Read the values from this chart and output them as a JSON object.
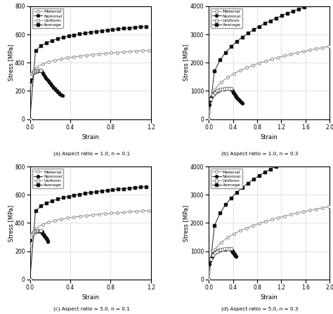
{
  "subplots": [
    {
      "title": "(a) Aspect ratio = 1.0, n = 0.1",
      "ylim": [
        0,
        800
      ],
      "xlim": [
        0,
        1.2
      ],
      "yticks": [
        0,
        200,
        400,
        600,
        800
      ],
      "xticks": [
        0,
        0.4,
        0.8,
        1.2
      ],
      "ylabel": "Stress [MPa]",
      "xlabel": "Strain",
      "n": 0.1,
      "K": 480,
      "aspect": 1.0,
      "nom_end_eps": 0.32,
      "nom_n_markers": 50,
      "avg_end": 1.15,
      "avg_n_pts": 22,
      "avg_scale": 1.35,
      "mat_end": 1.18,
      "mat_n_markers": 20
    },
    {
      "title": "(b) Aspect ratio = 1.0, n = 0.3",
      "ylim": [
        0,
        4000
      ],
      "xlim": [
        0,
        2.0
      ],
      "yticks": [
        0,
        1000,
        2000,
        3000,
        4000
      ],
      "xticks": [
        0,
        0.4,
        0.8,
        1.2,
        1.6,
        2.0
      ],
      "ylabel": "Stress [MPa]",
      "xlabel": "Strain",
      "n": 0.3,
      "K": 2100,
      "aspect": 1.0,
      "nom_end_eps": 0.55,
      "nom_n_markers": 50,
      "avg_end": 1.95,
      "avg_n_pts": 22,
      "avg_scale": 1.65,
      "mat_end": 1.98,
      "mat_n_markers": 20
    },
    {
      "title": "(c) Aspect ratio = 5.0, n = 0.1",
      "ylim": [
        0,
        800
      ],
      "xlim": [
        0,
        1.2
      ],
      "yticks": [
        0,
        200,
        400,
        600,
        800
      ],
      "xticks": [
        0,
        0.4,
        0.8,
        1.2
      ],
      "ylabel": "Stress [MPa]",
      "xlabel": "Strain",
      "n": 0.1,
      "K": 480,
      "aspect": 5.0,
      "nom_end_eps": 0.18,
      "nom_n_markers": 35,
      "avg_end": 1.15,
      "avg_n_pts": 22,
      "avg_scale": 1.35,
      "mat_end": 1.18,
      "mat_n_markers": 20
    },
    {
      "title": "(d) Aspect ratio = 5.0, n = 0.3",
      "ylim": [
        0,
        4000
      ],
      "xlim": [
        0,
        2.0
      ],
      "yticks": [
        0,
        1000,
        2000,
        3000,
        4000
      ],
      "xticks": [
        0,
        0.4,
        0.8,
        1.2,
        1.6,
        2.0
      ],
      "ylabel": "Stress [MPa]",
      "xlabel": "Strain",
      "n": 0.3,
      "K": 2100,
      "aspect": 5.0,
      "nom_end_eps": 0.45,
      "nom_n_markers": 45,
      "avg_end": 1.95,
      "avg_n_pts": 22,
      "avg_scale": 1.85,
      "mat_end": 1.98,
      "mat_n_markers": 20
    }
  ],
  "legend_labels": [
    "Material",
    "Nominal",
    "Uniform",
    "Average"
  ]
}
